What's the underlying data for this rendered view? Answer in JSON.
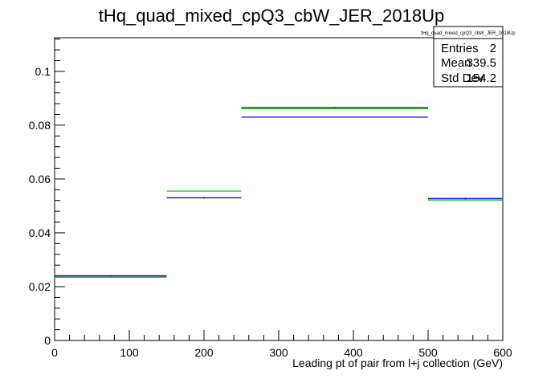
{
  "chart_data": {
    "type": "histogram",
    "title": "tHq_quad_mixed_cpQ3_cbW_JER_2018Up",
    "xlabel": "Leading pt of pair from l+j collection (GeV)",
    "ylabel": "",
    "xlim": [
      0,
      600
    ],
    "ylim": [
      0,
      0.1125
    ],
    "x_ticks": [
      "0",
      "100",
      "200",
      "300",
      "400",
      "500",
      "600"
    ],
    "y_ticks": [
      "0",
      "0.02",
      "0.04",
      "0.06",
      "0.08",
      "0.1"
    ],
    "bin_edges": [
      0,
      150,
      250,
      500,
      600
    ],
    "series": [
      {
        "color": "#000000",
        "values": [
          0.024,
          0.053,
          0.0865,
          0.0527
        ]
      },
      {
        "color": "#0000ff",
        "values": [
          0.024,
          0.053,
          0.083,
          0.0527
        ]
      },
      {
        "color": "#00cc00",
        "values": [
          0.0235,
          0.0555,
          0.0862,
          0.0522
        ]
      }
    ],
    "grid": false,
    "legend": "none",
    "stats_box": {
      "title": "tHq_quad_mixed_cpQ3_cbW_JER_2018Up",
      "rows": [
        {
          "label": "Entries",
          "value": "2"
        },
        {
          "label": "Mean",
          "value": "339.5"
        },
        {
          "label": "Std Dev",
          "value": "154.2"
        }
      ]
    }
  }
}
